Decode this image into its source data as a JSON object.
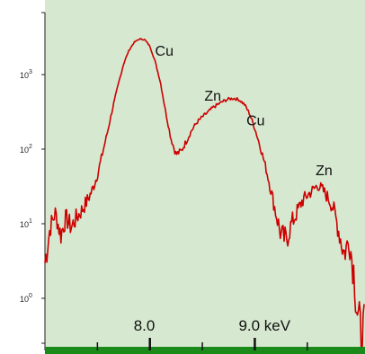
{
  "chart_data": {
    "type": "line",
    "title": "",
    "xlabel": "",
    "ylabel": "",
    "y_scale": "log",
    "xlim": [
      7.0,
      10.05
    ],
    "ylim": [
      0.2,
      10000
    ],
    "grid": false,
    "colors": {
      "background": "#d6e8d0",
      "line": "#cc0000",
      "axis_bar": "#1a8a1a"
    },
    "x_ticks": [
      {
        "value": 8.0,
        "label": "8.0"
      },
      {
        "value": 9.0,
        "label": "9.0 keV"
      }
    ],
    "x_minor_ticks": [
      7.5,
      8.5,
      9.5
    ],
    "y_ticks": [
      {
        "value": 1,
        "base": "10",
        "exp": "0"
      },
      {
        "value": 10,
        "base": "10",
        "exp": "1"
      },
      {
        "value": 100,
        "base": "10",
        "exp": "2"
      },
      {
        "value": 1000,
        "base": "10",
        "exp": "3"
      }
    ],
    "annotations": [
      {
        "text": "Cu",
        "x": 8.05,
        "y": 1800
      },
      {
        "text": "Zn",
        "x": 8.52,
        "y": 450
      },
      {
        "text": "Cu",
        "x": 8.92,
        "y": 210
      },
      {
        "text": "Zn",
        "x": 9.58,
        "y": 45
      }
    ],
    "series": [
      {
        "x": [
          7.0,
          7.05,
          7.1,
          7.15,
          7.2,
          7.25,
          7.3,
          7.35,
          7.4,
          7.45,
          7.5,
          7.55,
          7.6,
          7.65,
          7.7,
          7.75,
          7.8,
          7.85,
          7.9,
          7.95,
          8.0,
          8.05,
          8.1,
          8.15,
          8.2,
          8.25,
          8.3,
          8.35,
          8.4,
          8.45,
          8.5,
          8.55,
          8.6,
          8.65,
          8.7,
          8.75,
          8.8,
          8.85,
          8.9,
          8.95,
          9.0,
          9.05,
          9.1,
          9.15,
          9.2,
          9.25,
          9.3,
          9.35,
          9.4,
          9.45,
          9.5,
          9.55,
          9.6,
          9.65,
          9.7,
          9.75,
          9.8,
          9.85,
          9.9,
          9.95,
          10.0,
          10.05
        ],
        "y": [
          3,
          9,
          14,
          7,
          12,
          9,
          12,
          15,
          20,
          28,
          45,
          90,
          180,
          380,
          750,
          1400,
          2100,
          2700,
          3000,
          2950,
          2400,
          1500,
          800,
          320,
          140,
          85,
          95,
          130,
          180,
          230,
          270,
          310,
          360,
          400,
          440,
          470,
          480,
          460,
          400,
          300,
          190,
          110,
          60,
          30,
          14,
          7,
          6,
          10,
          14,
          20,
          24,
          28,
          33,
          28,
          22,
          16,
          8,
          4,
          6,
          2,
          0.3,
          0.3
        ]
      }
    ]
  }
}
